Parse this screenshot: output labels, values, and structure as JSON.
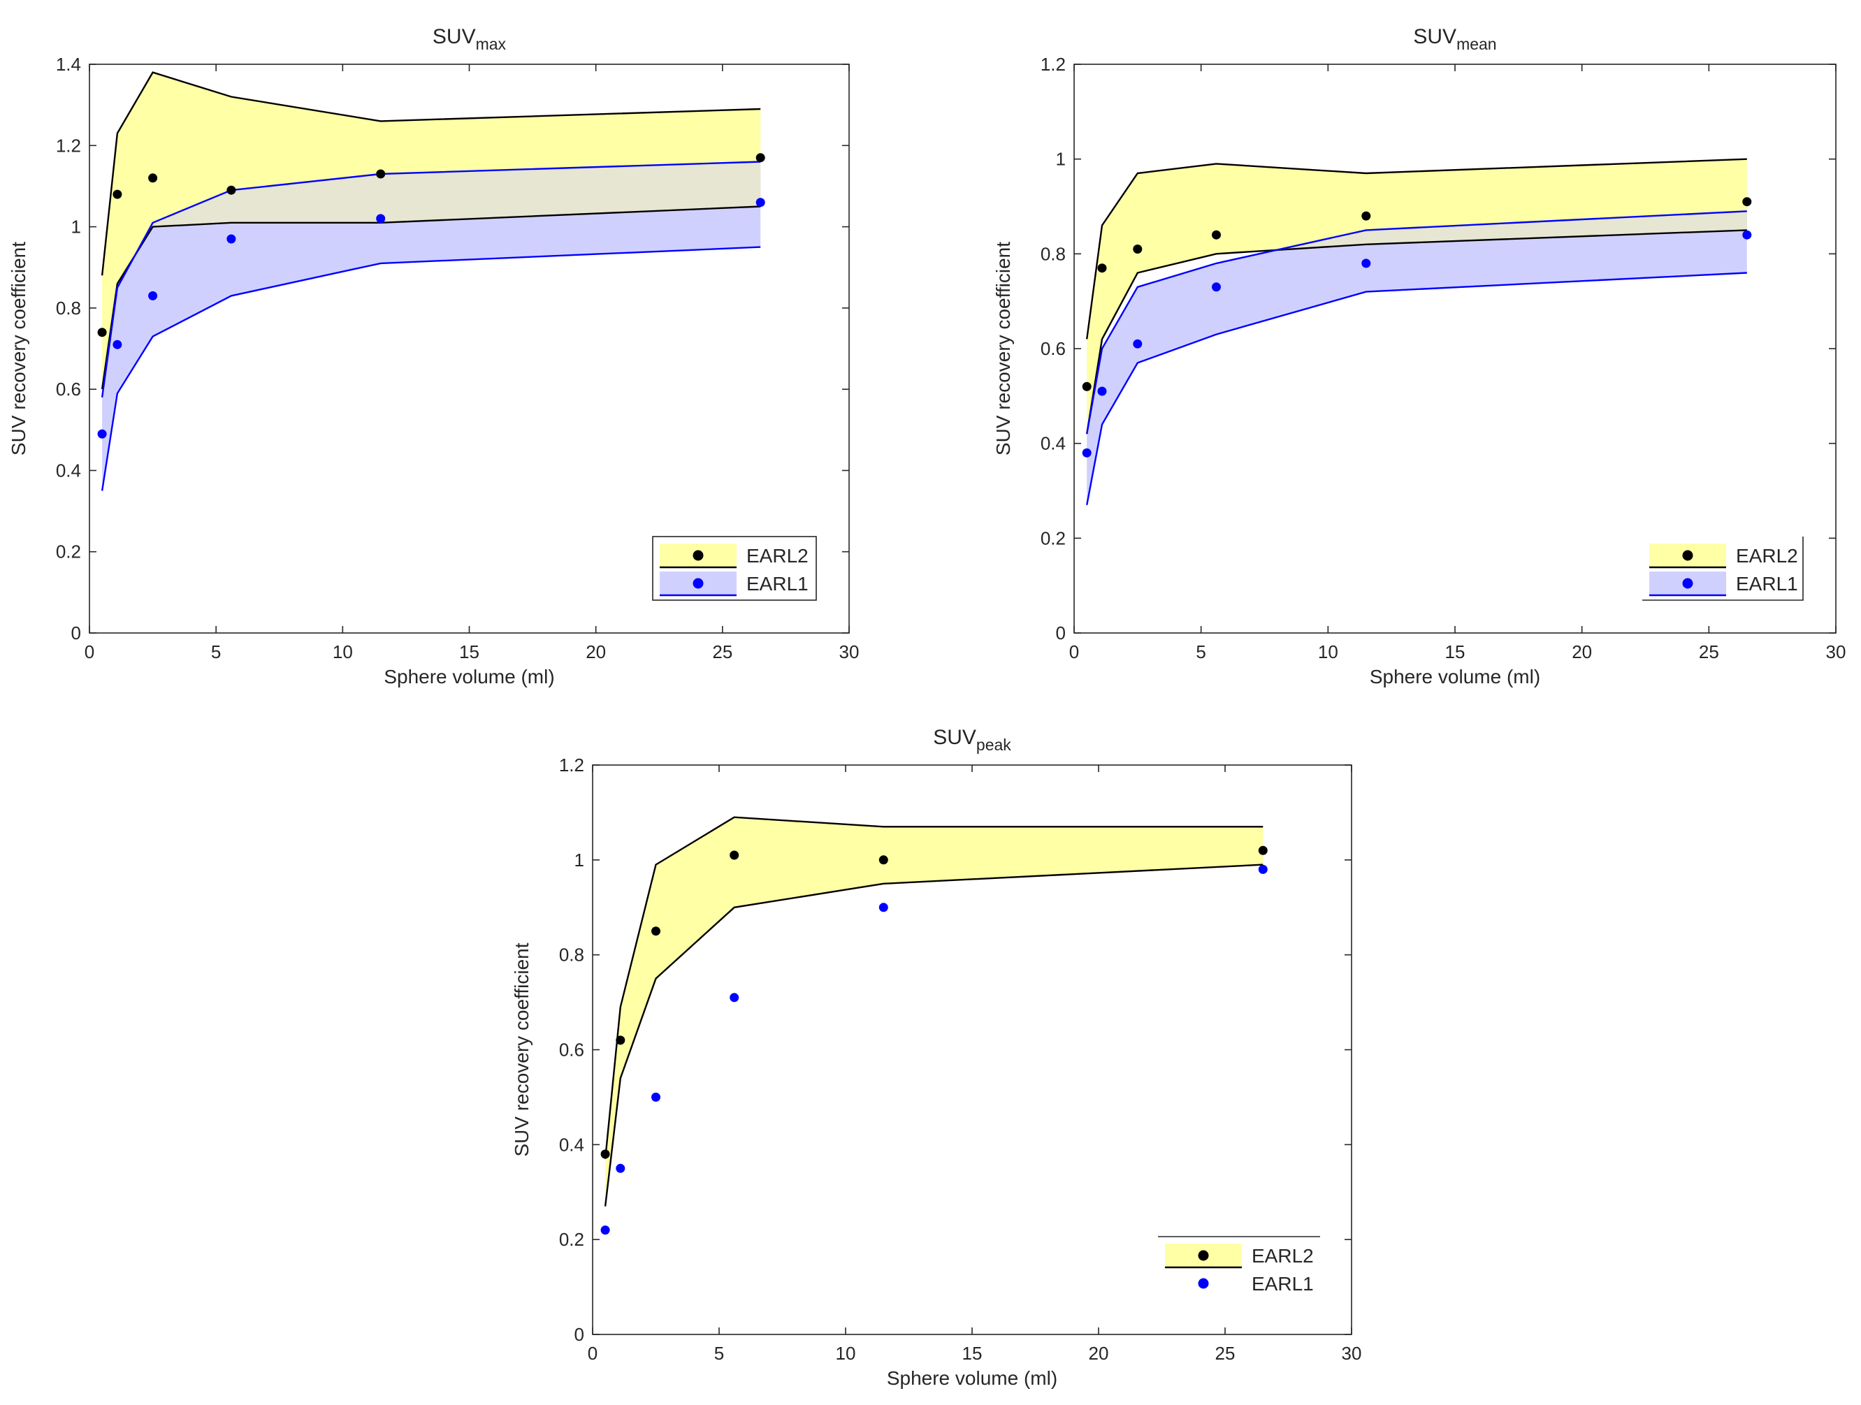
{
  "figure": {
    "name": "SUV recovery coefficient comparison"
  },
  "chart_data": [
    {
      "id": "suv-max",
      "type": "scatter",
      "title": "SUV",
      "title_sub": "max",
      "xlabel": "Sphere volume (ml)",
      "ylabel": "SUV recovery coefficient",
      "xlim": [
        0,
        30
      ],
      "ylim": [
        0,
        1.4
      ],
      "xticks": [
        0,
        5,
        10,
        15,
        20,
        25,
        30
      ],
      "yticks": [
        0,
        0.2,
        0.4,
        0.6,
        0.8,
        1,
        1.2,
        1.4
      ],
      "ytick_labels": [
        "0",
        "0.2",
        "0.4",
        "0.6",
        "0.8",
        "1",
        "1.2",
        "1.4"
      ],
      "legend_position": "bottom-right",
      "bands": [
        {
          "name": "EARL2",
          "fill": "#ffffa6",
          "edge": "#000000",
          "x": [
            0.5,
            1.1,
            2.5,
            5.6,
            11.5,
            26.5
          ],
          "upper": [
            0.88,
            1.23,
            1.38,
            1.32,
            1.26,
            1.29
          ],
          "lower": [
            0.6,
            0.86,
            1.0,
            1.01,
            1.01,
            1.05
          ]
        },
        {
          "name": "EARL1",
          "fill": "#d0d0ff",
          "edge": "#0000ff",
          "x": [
            0.5,
            1.1,
            2.5,
            5.6,
            11.5,
            26.5
          ],
          "upper": [
            0.58,
            0.85,
            1.01,
            1.09,
            1.13,
            1.16
          ],
          "lower": [
            0.35,
            0.59,
            0.73,
            0.83,
            0.91,
            0.95
          ]
        }
      ],
      "overlap_fill": "#e6e6d2",
      "series": [
        {
          "name": "EARL2",
          "color": "#000000",
          "x": [
            0.5,
            1.1,
            2.5,
            5.6,
            11.5,
            26.5
          ],
          "values": [
            0.74,
            1.08,
            1.12,
            1.09,
            1.13,
            1.17
          ]
        },
        {
          "name": "EARL1",
          "color": "#0000ff",
          "x": [
            0.5,
            1.1,
            2.5,
            5.6,
            11.5,
            26.5
          ],
          "values": [
            0.49,
            0.71,
            0.83,
            0.97,
            1.02,
            1.06
          ]
        }
      ],
      "legend": [
        {
          "label": "EARL2",
          "fill": "#ffffa6",
          "edge": "#000000",
          "marker": "#000000"
        },
        {
          "label": "EARL1",
          "fill": "#d0d0ff",
          "edge": "#0000ff",
          "marker": "#0000ff"
        }
      ]
    },
    {
      "id": "suv-mean",
      "type": "scatter",
      "title": "SUV",
      "title_sub": "mean",
      "xlabel": "Sphere volume (ml)",
      "ylabel": "SUV recovery coefficient",
      "xlim": [
        0,
        30
      ],
      "ylim": [
        0,
        1.2
      ],
      "xticks": [
        0,
        5,
        10,
        15,
        20,
        25,
        30
      ],
      "yticks": [
        0,
        0.2,
        0.4,
        0.6,
        0.8,
        1,
        1.2
      ],
      "ytick_labels": [
        "0",
        "0.2",
        "0.4",
        "0.6",
        "0.8",
        "1",
        "1.2"
      ],
      "legend_position": "bottom-right",
      "bands": [
        {
          "name": "EARL2",
          "fill": "#ffffa6",
          "edge": "#000000",
          "x": [
            0.5,
            1.1,
            2.5,
            5.6,
            11.5,
            26.5
          ],
          "upper": [
            0.62,
            0.86,
            0.97,
            0.99,
            0.97,
            1.0
          ],
          "lower": [
            0.42,
            0.62,
            0.76,
            0.8,
            0.82,
            0.85
          ]
        },
        {
          "name": "EARL1",
          "fill": "#d0d0ff",
          "edge": "#0000ff",
          "x": [
            0.5,
            1.1,
            2.5,
            5.6,
            11.5,
            26.5
          ],
          "upper": [
            0.42,
            0.6,
            0.73,
            0.78,
            0.85,
            0.89
          ],
          "lower": [
            0.27,
            0.44,
            0.57,
            0.63,
            0.72,
            0.76
          ]
        }
      ],
      "overlap_fill": "#e6e6d2",
      "series": [
        {
          "name": "EARL2",
          "color": "#000000",
          "x": [
            0.5,
            1.1,
            2.5,
            5.6,
            11.5,
            26.5
          ],
          "values": [
            0.52,
            0.77,
            0.81,
            0.84,
            0.88,
            0.91
          ]
        },
        {
          "name": "EARL1",
          "color": "#0000ff",
          "x": [
            0.5,
            1.1,
            2.5,
            5.6,
            11.5,
            26.5
          ],
          "values": [
            0.38,
            0.51,
            0.61,
            0.73,
            0.78,
            0.84
          ]
        }
      ],
      "legend": [
        {
          "label": "EARL2",
          "fill": "#ffffa6",
          "edge": "#000000",
          "marker": "#000000"
        },
        {
          "label": "EARL1",
          "fill": "#d0d0ff",
          "edge": "#0000ff",
          "marker": "#0000ff"
        }
      ]
    },
    {
      "id": "suv-peak",
      "type": "scatter",
      "title": "SUV",
      "title_sub": "peak",
      "xlabel": "Sphere volume (ml)",
      "ylabel": "SUV recovery coefficient",
      "xlim": [
        0,
        30
      ],
      "ylim": [
        0,
        1.2
      ],
      "xticks": [
        0,
        5,
        10,
        15,
        20,
        25,
        30
      ],
      "yticks": [
        0,
        0.2,
        0.4,
        0.6,
        0.8,
        1,
        1.2
      ],
      "ytick_labels": [
        "0",
        "0.2",
        "0.4",
        "0.6",
        "0.8",
        "1",
        "1.2"
      ],
      "legend_position": "bottom-right",
      "bands": [
        {
          "name": "EARL2",
          "fill": "#ffffa6",
          "edge": "#000000",
          "x": [
            0.5,
            1.1,
            2.5,
            5.6,
            11.5,
            26.5
          ],
          "upper": [
            0.37,
            0.69,
            0.99,
            1.09,
            1.07,
            1.07
          ],
          "lower": [
            0.27,
            0.54,
            0.75,
            0.9,
            0.95,
            0.99
          ]
        }
      ],
      "overlap_fill": "",
      "series": [
        {
          "name": "EARL2",
          "color": "#000000",
          "x": [
            0.5,
            1.1,
            2.5,
            5.6,
            11.5,
            26.5
          ],
          "values": [
            0.38,
            0.62,
            0.85,
            1.01,
            1.0,
            1.02
          ]
        },
        {
          "name": "EARL1",
          "color": "#0000ff",
          "x": [
            0.5,
            1.1,
            2.5,
            5.6,
            11.5,
            26.5
          ],
          "values": [
            0.22,
            0.35,
            0.5,
            0.71,
            0.9,
            0.98
          ]
        }
      ],
      "legend": [
        {
          "label": "EARL2",
          "fill": "#ffffa6",
          "edge": "#000000",
          "marker": "#000000"
        },
        {
          "label": "EARL1",
          "fill": "none",
          "edge": "none",
          "marker": "#0000ff"
        }
      ]
    }
  ]
}
